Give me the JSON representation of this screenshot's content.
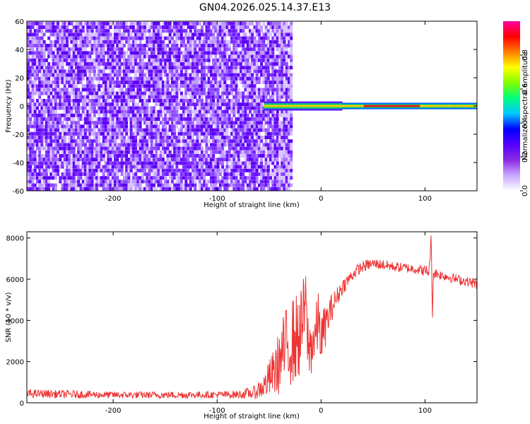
{
  "title": "GN04.2026.025.14.37.E13",
  "chart_data": [
    {
      "type": "heatmap",
      "title": "GN04.2026.025.14.37.E13",
      "xlabel": "Height of straight line (km)",
      "ylabel": "Frequency (Hz)",
      "xlim": [
        -283,
        150
      ],
      "ylim": [
        -60,
        60
      ],
      "xticks": [
        -200,
        -100,
        0,
        100
      ],
      "yticks": [
        -60,
        -40,
        -20,
        0,
        20,
        40,
        60
      ],
      "xtick_labels": [
        "-200",
        "-100",
        "0",
        "100"
      ],
      "ytick_labels": [
        "-60",
        "-40",
        "-20",
        "0",
        "20",
        "40",
        "60"
      ],
      "noise_region_x": [
        -283,
        -30
      ],
      "signal_line_y": 0,
      "signal_start_x": -55,
      "colorbar": {
        "label": "Normalized spectral amplitude",
        "range": [
          0,
          1
        ],
        "ticks": [
          0,
          0.2,
          0.4,
          0.6,
          0.8
        ],
        "tick_labels": [
          "0.0",
          "0.2",
          "0.4",
          "0.6",
          "0.8"
        ],
        "colors": [
          "#ffffff",
          "#c9a8ff",
          "#8a2be2",
          "#5500ff",
          "#0000ff",
          "#00c8ff",
          "#00ff80",
          "#80ff00",
          "#ffff00",
          "#ff8000",
          "#ff0000",
          "#ff00a0"
        ]
      }
    },
    {
      "type": "line",
      "xlabel": "Height of straight line (km)",
      "ylabel": "SNR (10 * v/v)",
      "xlim": [
        -283,
        150
      ],
      "ylim": [
        0,
        8300
      ],
      "xticks": [
        -200,
        -100,
        0,
        100
      ],
      "yticks": [
        0,
        2000,
        4000,
        6000,
        8000
      ],
      "xtick_labels": [
        "-200",
        "-100",
        "0",
        "100"
      ],
      "ytick_labels": [
        "0",
        "2000",
        "4000",
        "6000",
        "8000"
      ],
      "color": "#ee3333",
      "x": [
        -283,
        -250,
        -200,
        -150,
        -110,
        -80,
        -65,
        -55,
        -45,
        -40,
        -35,
        -30,
        -25,
        -20,
        -15,
        -12,
        -8,
        -5,
        -2,
        0,
        3,
        6,
        10,
        15,
        20,
        25,
        30,
        35,
        40,
        45,
        50,
        60,
        70,
        80,
        90,
        100,
        104,
        106,
        107,
        108,
        110,
        115,
        120,
        130,
        140,
        150
      ],
      "y": [
        450,
        420,
        380,
        380,
        390,
        400,
        480,
        800,
        1500,
        2000,
        2600,
        2900,
        3100,
        3300,
        4800,
        2500,
        3000,
        3300,
        4100,
        3000,
        3600,
        4000,
        4600,
        5100,
        5600,
        5900,
        6200,
        6450,
        6600,
        6700,
        6750,
        6700,
        6600,
        6550,
        6500,
        6400,
        6400,
        8100,
        4000,
        6300,
        6300,
        6200,
        6150,
        6000,
        5900,
        5750
      ],
      "noise_amplitude": [
        200,
        200,
        170,
        170,
        170,
        200,
        300,
        600,
        1200,
        1600,
        1900,
        2100,
        2200,
        2100,
        1800,
        1600,
        1500,
        1500,
        1500,
        1300,
        1100,
        900,
        700,
        500,
        400,
        350,
        300,
        280,
        280,
        260,
        260,
        260,
        240,
        240,
        240,
        260,
        400,
        200,
        200,
        300,
        260,
        240,
        240,
        240,
        240,
        260
      ]
    }
  ]
}
